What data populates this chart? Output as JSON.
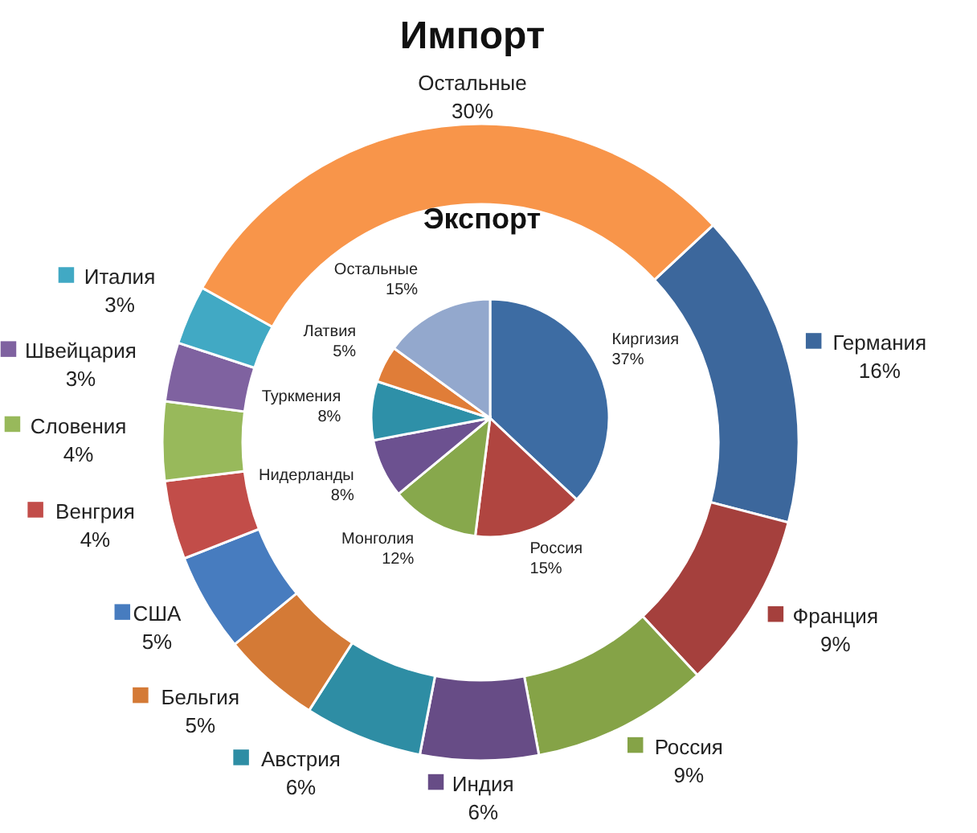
{
  "chart_data": [
    {
      "type": "donut",
      "title": "Импорт",
      "legend": "left",
      "categories": [
        "Германия",
        "Франция",
        "Россия",
        "Индия",
        "Австрия",
        "Бельгия",
        "США",
        "Венгрия",
        "Словения",
        "Швейцария",
        "Италия",
        "Остальные"
      ],
      "values": [
        16,
        9,
        9,
        6,
        6,
        5,
        5,
        4,
        4,
        3,
        3,
        30
      ],
      "value_labels": [
        "16%",
        "9%",
        "9%",
        "6%",
        "6%",
        "5%",
        "5%",
        "4%",
        "4%",
        "3%",
        "3%",
        "30%"
      ],
      "colors": [
        "#3c679c",
        "#a5403d",
        "#85a347",
        "#674c86",
        "#2e8da4",
        "#d47a36",
        "#477cbf",
        "#c24d49",
        "#98b95b",
        "#7f62a0",
        "#41a9c4",
        "#f8954a"
      ]
    },
    {
      "type": "pie",
      "title": "Экспорт",
      "categories": [
        "Киргизия",
        "Россия",
        "Монголия",
        "Нидерланды",
        "Туркмения",
        "Латвия",
        "Остальные"
      ],
      "values": [
        37,
        15,
        12,
        8,
        8,
        5,
        15
      ],
      "value_labels": [
        "37%",
        "15%",
        "12%",
        "8%",
        "8%",
        "5%",
        "15%"
      ],
      "colors": [
        "#3d6ca3",
        "#b04540",
        "#87a84c",
        "#6c5190",
        "#2e90a8",
        "#e07d38",
        "#93a8cd"
      ]
    }
  ]
}
